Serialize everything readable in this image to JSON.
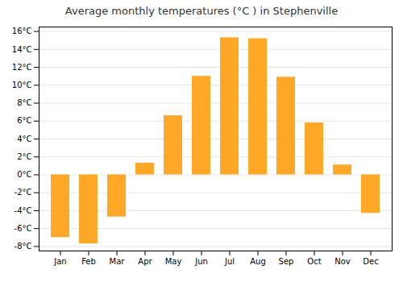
{
  "chart_data": {
    "type": "bar",
    "title": "Average monthly temperatures (°C ) in Stephenville",
    "categories": [
      "Jan",
      "Feb",
      "Mar",
      "Apr",
      "May",
      "Jun",
      "Jul",
      "Aug",
      "Sep",
      "Oct",
      "Nov",
      "Dec"
    ],
    "values": [
      -7.0,
      -7.7,
      -4.7,
      1.3,
      6.6,
      11.0,
      15.3,
      15.2,
      10.9,
      5.8,
      1.1,
      -4.3
    ],
    "color": "#FFA726",
    "ylim": [
      -8.5,
      16.5
    ],
    "yticks": [
      {
        "value": -8,
        "label": "-8°C"
      },
      {
        "value": -6,
        "label": "-6°C"
      },
      {
        "value": -4,
        "label": "-4°C"
      },
      {
        "value": -2,
        "label": "-2°C"
      },
      {
        "value": 0,
        "label": "0°C"
      },
      {
        "value": 2,
        "label": "2°C"
      },
      {
        "value": 4,
        "label": "4°C"
      },
      {
        "value": 6,
        "label": "6°C"
      },
      {
        "value": 8,
        "label": "8°C"
      },
      {
        "value": 10,
        "label": "10°C"
      },
      {
        "value": 12,
        "label": "12°C"
      },
      {
        "value": 14,
        "label": "14°C"
      },
      {
        "value": 16,
        "label": "16°C"
      }
    ],
    "grid": true
  }
}
